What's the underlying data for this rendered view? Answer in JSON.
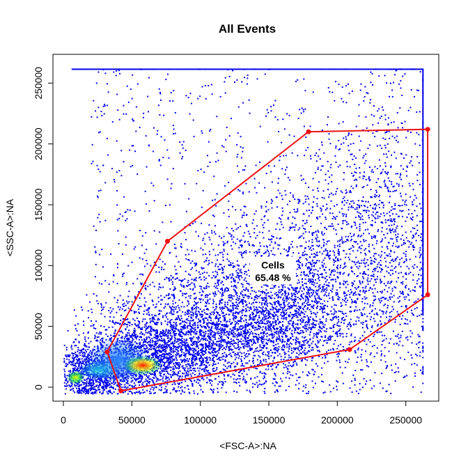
{
  "chart_data": {
    "type": "scatter",
    "title": "All Events",
    "xlabel": "<FSC-A>:NA",
    "ylabel": "<SSC-A>:NA",
    "xlim": [
      0,
      270000
    ],
    "ylim": [
      -10000,
      265000
    ],
    "x_ticks": [
      {
        "value": 0,
        "label": "0"
      },
      {
        "value": 50000,
        "label": "50000"
      },
      {
        "value": 100000,
        "label": "100000"
      },
      {
        "value": 150000,
        "label": "150000"
      },
      {
        "value": 200000,
        "label": "200000"
      },
      {
        "value": 250000,
        "label": "250000"
      }
    ],
    "y_ticks": [
      {
        "value": 0,
        "label": "0"
      },
      {
        "value": 50000,
        "label": "50000"
      },
      {
        "value": 100000,
        "label": "100000"
      },
      {
        "value": 150000,
        "label": "150000"
      },
      {
        "value": 200000,
        "label": "200000"
      },
      {
        "value": 250000,
        "label": "250000"
      }
    ],
    "density_clusters": [
      {
        "x": 58000,
        "y": 18000,
        "peak": "red"
      },
      {
        "x": 9000,
        "y": 8000,
        "peak": "green"
      }
    ],
    "saturation": {
      "x_max": 262000,
      "y_max": 262000
    },
    "gate": {
      "name": "Cells",
      "percent_label": "65.48 %",
      "color": "#ee1111",
      "vertices": [
        {
          "x": 32000,
          "y": 29000
        },
        {
          "x": 76000,
          "y": 120000
        },
        {
          "x": 179000,
          "y": 210000
        },
        {
          "x": 266000,
          "y": 212000
        },
        {
          "x": 266000,
          "y": 76000
        },
        {
          "x": 209000,
          "y": 31000
        },
        {
          "x": 42000,
          "y": -3000
        }
      ],
      "label_position": {
        "x": 153000,
        "y": 97000
      }
    },
    "point_color": "#0000ee",
    "grid": false
  }
}
